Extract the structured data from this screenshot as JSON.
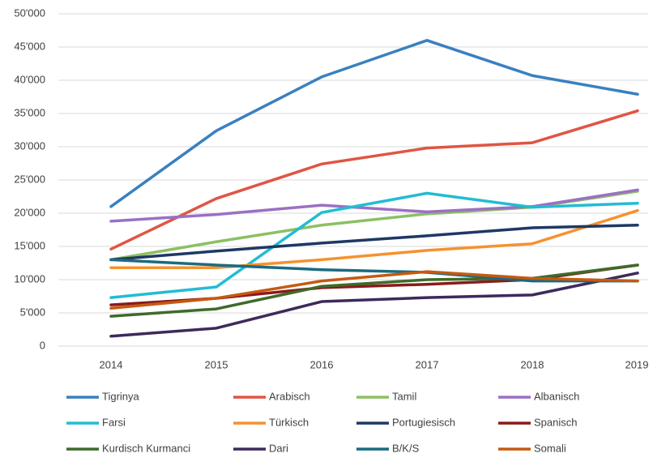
{
  "chart_data": {
    "type": "line",
    "categories": [
      "2014",
      "2015",
      "2016",
      "2017",
      "2018",
      "2019"
    ],
    "series": [
      {
        "name": "Tigrinya",
        "color": "#3a80c0",
        "values": [
          21000,
          32400,
          40500,
          46000,
          40700,
          37900
        ]
      },
      {
        "name": "Arabisch",
        "color": "#e05544",
        "values": [
          14600,
          22200,
          27400,
          29800,
          30600,
          35400
        ]
      },
      {
        "name": "Tamil",
        "color": "#8cc063",
        "values": [
          13000,
          15700,
          18200,
          19900,
          20900,
          23300
        ]
      },
      {
        "name": "Albanisch",
        "color": "#9a70c4",
        "values": [
          18800,
          19800,
          21200,
          20200,
          21000,
          23500
        ]
      },
      {
        "name": "Farsi",
        "color": "#22bcd4",
        "values": [
          7300,
          8900,
          20100,
          23000,
          20900,
          21500
        ]
      },
      {
        "name": "Türkisch",
        "color": "#f5922f",
        "values": [
          11800,
          11800,
          13000,
          14400,
          15400,
          20400
        ]
      },
      {
        "name": "Portugiesisch",
        "color": "#1f3864",
        "values": [
          13000,
          14300,
          15500,
          16600,
          17800,
          18200
        ]
      },
      {
        "name": "Spanisch",
        "color": "#8b1a1a",
        "values": [
          6200,
          7200,
          8800,
          9300,
          10000,
          12200
        ]
      },
      {
        "name": "Kurdisch Kurmanci",
        "color": "#3e6b2a",
        "values": [
          4500,
          5600,
          9000,
          10000,
          10200,
          12200
        ]
      },
      {
        "name": "Dari",
        "color": "#3d2a5a",
        "values": [
          1500,
          2700,
          6700,
          7300,
          7700,
          11000
        ]
      },
      {
        "name": "B/K/S",
        "color": "#1a6b80",
        "values": [
          13000,
          12200,
          11500,
          11100,
          9800,
          9800
        ]
      },
      {
        "name": "Somali",
        "color": "#c55a11",
        "values": [
          5700,
          7200,
          9800,
          11200,
          10200,
          9800
        ]
      }
    ],
    "ylim": [
      0,
      50000
    ],
    "yticks": [
      0,
      {
        "value": 5000,
        "label": "5'000"
      },
      {
        "value": 10000,
        "label": "10'000"
      },
      {
        "value": 15000,
        "label": "15'000"
      },
      {
        "value": 20000,
        "label": "20'000"
      },
      {
        "value": 25000,
        "label": "25'000"
      },
      {
        "value": 30000,
        "label": "30'000"
      },
      {
        "value": 35000,
        "label": "35'000"
      },
      {
        "value": 40000,
        "label": "40'000"
      },
      {
        "value": 45000,
        "label": "45'000"
      },
      {
        "value": 50000,
        "label": "50'000"
      }
    ],
    "grid": true
  }
}
